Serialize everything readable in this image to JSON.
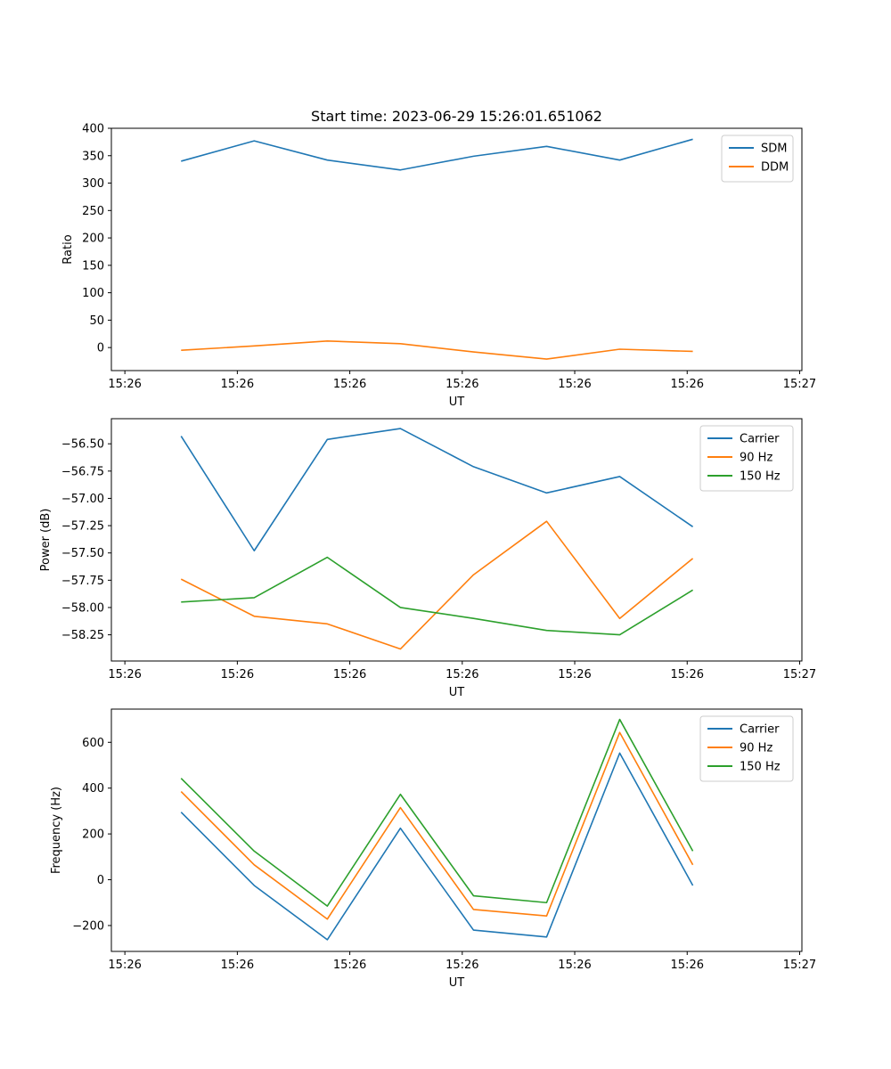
{
  "title": "Start time: 2023-06-29 15:26:01.651062",
  "colors": {
    "series1": "#1f77b4",
    "series2": "#ff7f0e",
    "series3": "#2ca02c",
    "axis": "#000000",
    "legend_border": "#cccccc"
  },
  "chart_data": [
    {
      "type": "line",
      "title": "Start time: 2023-06-29 15:26:01.651062",
      "xlabel": "UT",
      "ylabel": "Ratio",
      "x_ticks": [
        "15:26",
        "15:26",
        "15:26",
        "15:26",
        "15:26",
        "15:26",
        "15:27"
      ],
      "x_tick_positions": [
        0,
        1,
        2,
        3,
        4,
        5,
        6
      ],
      "xlim": [
        -0.12,
        6.02
      ],
      "x": [
        0.5,
        1.15,
        1.8,
        2.45,
        3.1,
        3.75,
        4.4,
        5.05
      ],
      "ylim": [
        -42,
        400
      ],
      "y_ticks": [
        0,
        50,
        100,
        150,
        200,
        250,
        300,
        350,
        400
      ],
      "legend_position": "top-right",
      "series": [
        {
          "name": "SDM",
          "color_key": "series1",
          "values": [
            340,
            377,
            342,
            324,
            349,
            367,
            342,
            380
          ]
        },
        {
          "name": "DDM",
          "color_key": "series2",
          "values": [
            -5,
            3,
            12,
            7,
            -8,
            -21,
            -3,
            -7
          ]
        }
      ]
    },
    {
      "type": "line",
      "xlabel": "UT",
      "ylabel": "Power (dB)",
      "x_ticks": [
        "15:26",
        "15:26",
        "15:26",
        "15:26",
        "15:26",
        "15:26",
        "15:27"
      ],
      "x_tick_positions": [
        0,
        1,
        2,
        3,
        4,
        5,
        6
      ],
      "xlim": [
        -0.12,
        6.02
      ],
      "x": [
        0.5,
        1.15,
        1.8,
        2.45,
        3.1,
        3.75,
        4.4,
        5.05
      ],
      "ylim": [
        -58.49,
        -56.27
      ],
      "y_ticks": [
        -58.25,
        -58.0,
        -57.75,
        -57.5,
        -57.25,
        -57.0,
        -56.75,
        -56.5
      ],
      "y_tick_labels": [
        "−58.25",
        "−58.00",
        "−57.75",
        "−57.50",
        "−57.25",
        "−57.00",
        "−56.75",
        "−56.50"
      ],
      "legend_position": "top-right",
      "series": [
        {
          "name": "Carrier",
          "color_key": "series1",
          "values": [
            -56.43,
            -57.48,
            -56.46,
            -56.36,
            -56.71,
            -56.95,
            -56.8,
            -57.26
          ]
        },
        {
          "name": "90 Hz",
          "color_key": "series2",
          "values": [
            -57.74,
            -58.08,
            -58.15,
            -58.38,
            -57.7,
            -57.21,
            -58.1,
            -57.55
          ]
        },
        {
          "name": "150 Hz",
          "color_key": "series3",
          "values": [
            -57.95,
            -57.91,
            -57.54,
            -58.0,
            -58.1,
            -58.21,
            -58.25,
            -57.84
          ]
        }
      ]
    },
    {
      "type": "line",
      "xlabel": "UT",
      "ylabel": "Frequency (Hz)",
      "x_ticks": [
        "15:26",
        "15:26",
        "15:26",
        "15:26",
        "15:26",
        "15:26",
        "15:27"
      ],
      "x_tick_positions": [
        0,
        1,
        2,
        3,
        4,
        5,
        6
      ],
      "xlim": [
        -0.12,
        6.02
      ],
      "x": [
        0.5,
        1.15,
        1.8,
        2.45,
        3.1,
        3.75,
        4.4,
        5.05
      ],
      "ylim": [
        -313,
        745
      ],
      "y_ticks": [
        -200,
        0,
        200,
        400,
        600
      ],
      "y_tick_labels": [
        "−200",
        "0",
        "200",
        "400",
        "600"
      ],
      "legend_position": "top-right",
      "series": [
        {
          "name": "Carrier",
          "color_key": "series1",
          "values": [
            295,
            -25,
            -262,
            225,
            -220,
            -250,
            553,
            -25
          ]
        },
        {
          "name": "90 Hz",
          "color_key": "series2",
          "values": [
            385,
            65,
            -172,
            315,
            -130,
            -158,
            643,
            65
          ]
        },
        {
          "name": "150 Hz",
          "color_key": "series3",
          "values": [
            443,
            125,
            -115,
            373,
            -70,
            -100,
            700,
            125
          ]
        }
      ]
    }
  ]
}
